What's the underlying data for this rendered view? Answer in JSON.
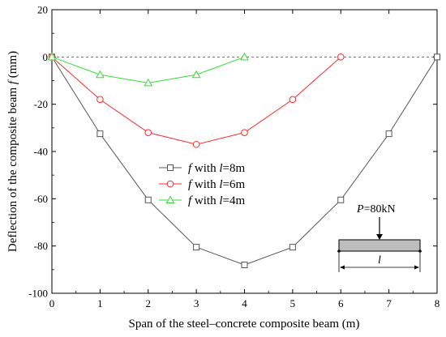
{
  "chart_data": {
    "type": "line",
    "xlabel": "Span of the steel–concrete composite beam (m)",
    "ylabel_prefix": "Deflection of the composite beam ",
    "ylabel_var": "f",
    "ylabel_suffix": " (mm)",
    "xlim": [
      0,
      8
    ],
    "ylim": [
      -100,
      20
    ],
    "x_ticks": [
      0,
      1,
      2,
      3,
      4,
      5,
      6,
      7,
      8
    ],
    "y_ticks": [
      20,
      0,
      -20,
      -40,
      -60,
      -80,
      -100
    ],
    "zero_reference_line": "dashed",
    "grid": false,
    "legend_position": "center-left",
    "series": [
      {
        "name_var": "f",
        "name_mid": " with ",
        "name_var2": "l",
        "name_tail": "=8m",
        "color": "#555555",
        "marker": "square",
        "x": [
          0,
          1,
          2,
          3,
          4,
          5,
          6,
          7,
          8
        ],
        "y": [
          0,
          -32.5,
          -60.5,
          -80.5,
          -88,
          -80.5,
          -60.5,
          -32.5,
          0
        ]
      },
      {
        "name_var": "f",
        "name_mid": " with ",
        "name_var2": "l",
        "name_tail": "=6m",
        "color": "#ff2a2a",
        "marker": "circle",
        "x": [
          0,
          1,
          2,
          3,
          4,
          5,
          6
        ],
        "y": [
          0,
          -18,
          -32,
          -37,
          -32,
          -18,
          0
        ]
      },
      {
        "name_var": "f",
        "name_mid": " with ",
        "name_var2": "l",
        "name_tail": "=4m",
        "color": "#33dd33",
        "marker": "triangle",
        "x": [
          0,
          1,
          2,
          3,
          4
        ],
        "y": [
          0,
          -7.5,
          -11,
          -7.5,
          0
        ]
      }
    ],
    "inset": {
      "load_var": "P",
      "load_value": "=80kN",
      "span_var": "l"
    }
  }
}
